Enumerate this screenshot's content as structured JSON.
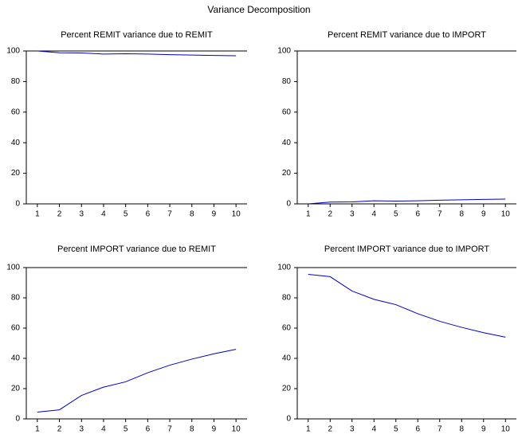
{
  "title": "Variance Decomposition",
  "chart_data": [
    {
      "type": "line",
      "title": "Percent REMIT variance due to REMIT",
      "categories": [
        "1",
        "2",
        "3",
        "4",
        "5",
        "6",
        "7",
        "8",
        "9",
        "10"
      ],
      "values": [
        100,
        98.8,
        98.7,
        98.0,
        98.2,
        98.0,
        97.6,
        97.3,
        97.1,
        96.9
      ],
      "color": "#0000cc",
      "ylim": [
        0,
        100
      ],
      "yticks": [
        0,
        20,
        40,
        60,
        80,
        100
      ]
    },
    {
      "type": "line",
      "title": "Percent REMIT variance due to IMPORT",
      "categories": [
        "1",
        "2",
        "3",
        "4",
        "5",
        "6",
        "7",
        "8",
        "9",
        "10"
      ],
      "values": [
        0,
        1.2,
        1.3,
        2.0,
        1.8,
        2.0,
        2.4,
        2.7,
        2.9,
        3.1
      ],
      "color": "#0000cc",
      "ylim": [
        0,
        100
      ],
      "yticks": [
        0,
        20,
        40,
        60,
        80,
        100
      ]
    },
    {
      "type": "line",
      "title": "Percent IMPORT variance due to REMIT",
      "categories": [
        "1",
        "2",
        "3",
        "4",
        "5",
        "6",
        "7",
        "8",
        "9",
        "10"
      ],
      "values": [
        4.5,
        6,
        15.5,
        21,
        24.5,
        30.5,
        35.5,
        39.5,
        43,
        46
      ],
      "color": "#0000cc",
      "ylim": [
        0,
        100
      ],
      "yticks": [
        0,
        20,
        40,
        60,
        80,
        100
      ]
    },
    {
      "type": "line",
      "title": "Percent IMPORT variance due to IMPORT",
      "categories": [
        "1",
        "2",
        "3",
        "4",
        "5",
        "6",
        "7",
        "8",
        "9",
        "10"
      ],
      "values": [
        95.5,
        94,
        84.5,
        79,
        75.5,
        69.5,
        64.5,
        60.5,
        57,
        54
      ],
      "color": "#0000cc",
      "ylim": [
        0,
        100
      ],
      "yticks": [
        0,
        20,
        40,
        60,
        80,
        100
      ]
    }
  ]
}
